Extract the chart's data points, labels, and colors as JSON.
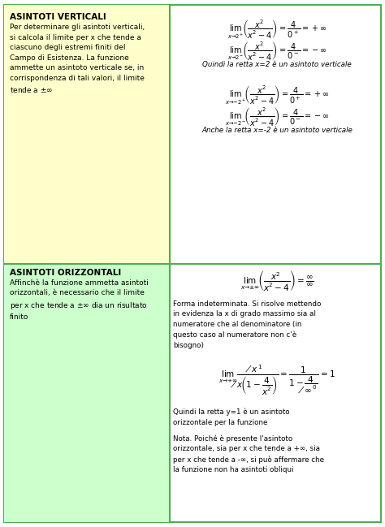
{
  "bg_color": "#ffffff",
  "border_color": "#4caf50",
  "left_bg_top": "#ffffcc",
  "left_bg_bottom": "#ccffcc",
  "right_bg": "#ffffff",
  "title_color": "#000000",
  "text_color": "#000000",
  "math_color": "#000000",
  "section1_title": "ASINTOTI VERTICALI",
  "section1_left": "Per determinare gli asintoti verticali,\nsi calcola il limite per x che tende a\nciascuno degli estremi finiti del\nCampo di Esistenza. La funzione\nammette un asintoto verticale se, in\ncorrispondenza di tali valori, il limite\ntende a $\\pm\\infty$",
  "section2_title": "ASINTOTI ORIZZONTALI",
  "section2_left": "Affinchè la funzione ammetta asintoti\norizzontali, è necessario che il limite\nper x che tende a $\\pm\\infty$ dia un risultato\nfinito",
  "grid_line_color": "#4caf50",
  "figsize": [
    4.74,
    6.49
  ],
  "dpi": 100
}
